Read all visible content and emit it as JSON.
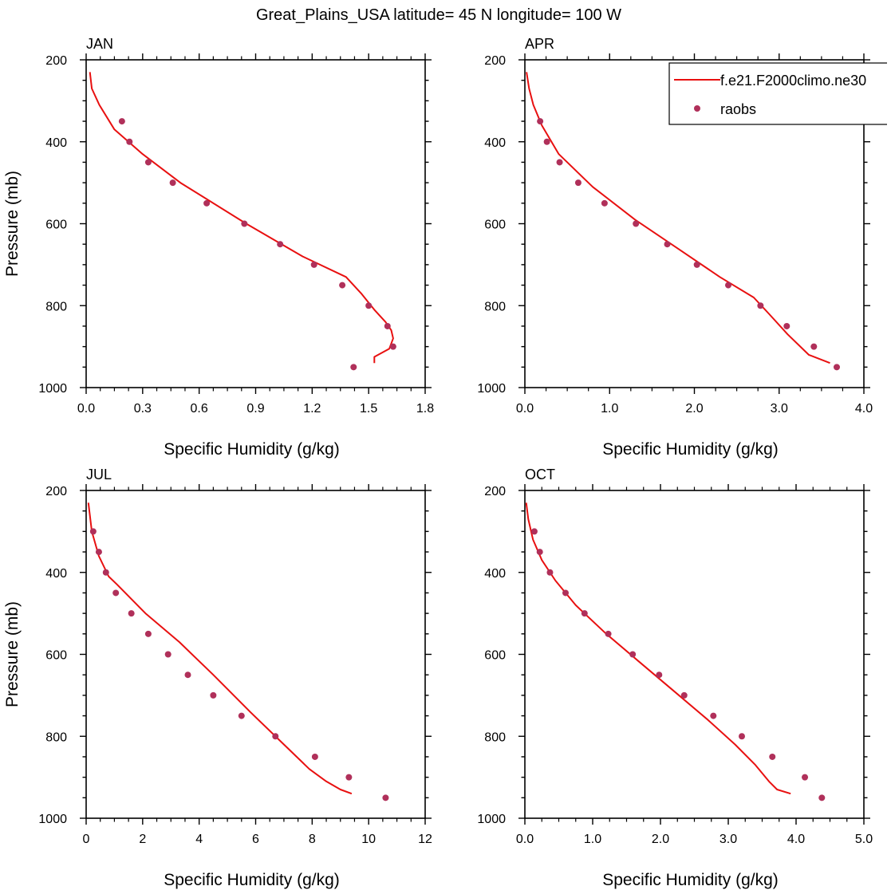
{
  "figure": {
    "title": "Great_Plains_USA  latitude= 45 N longitude= 100 W"
  },
  "colors": {
    "model_line": "#e81010",
    "raobs_marker": "#b0305a"
  },
  "legend": {
    "model_label": "f.e21.F2000climo.ne30",
    "obs_label": "raobs",
    "position": "top-right of APR panel"
  },
  "chart_data": [
    {
      "type": "line",
      "panel": "JAN",
      "title": "JAN",
      "xlabel": "Specific Humidity (g/kg)",
      "ylabel": "Pressure (mb)",
      "xlim": [
        0,
        1.8
      ],
      "ylim": [
        1000,
        200
      ],
      "xticks": [
        "0.0",
        "0.3",
        "0.6",
        "0.9",
        "1.2",
        "1.5",
        "1.8"
      ],
      "xtick_values": [
        0,
        0.3,
        0.6,
        0.9,
        1.2,
        1.5,
        1.8
      ],
      "yticks": [
        "200",
        "400",
        "600",
        "800",
        "1000"
      ],
      "ytick_values": [
        200,
        400,
        600,
        800,
        1000
      ],
      "series": [
        {
          "name": "f.e21.F2000climo.ne30",
          "kind": "line",
          "x": [
            0.02,
            0.03,
            0.07,
            0.15,
            0.3,
            0.5,
            0.85,
            1.15,
            1.38,
            1.46,
            1.53,
            1.59,
            1.62,
            1.63,
            1.61,
            1.53,
            1.53
          ],
          "y": [
            230,
            270,
            310,
            370,
            430,
            500,
            600,
            680,
            730,
            770,
            810,
            840,
            860,
            880,
            905,
            925,
            940
          ]
        },
        {
          "name": "raobs",
          "kind": "scatter",
          "x": [
            0.19,
            0.23,
            0.33,
            0.46,
            0.64,
            0.84,
            1.03,
            1.21,
            1.36,
            1.5,
            1.6,
            1.63,
            1.42
          ],
          "y": [
            350,
            400,
            450,
            500,
            550,
            600,
            650,
            700,
            750,
            800,
            850,
            900,
            950
          ]
        }
      ]
    },
    {
      "type": "line",
      "panel": "APR",
      "title": "APR",
      "xlabel": "Specific Humidity (g/kg)",
      "ylabel": "",
      "xlim": [
        0,
        4.0
      ],
      "ylim": [
        1000,
        200
      ],
      "xticks": [
        "0.0",
        "1.0",
        "2.0",
        "3.0",
        "4.0"
      ],
      "xtick_values": [
        0,
        1,
        2,
        3,
        4
      ],
      "yticks": [
        "200",
        "400",
        "600",
        "800",
        "1000"
      ],
      "ytick_values": [
        200,
        400,
        600,
        800,
        1000
      ],
      "series": [
        {
          "name": "f.e21.F2000climo.ne30",
          "kind": "line",
          "x": [
            0.02,
            0.05,
            0.1,
            0.2,
            0.4,
            0.8,
            1.3,
            1.8,
            2.3,
            2.7,
            2.88,
            3.1,
            3.35,
            3.6
          ],
          "y": [
            230,
            270,
            310,
            360,
            430,
            510,
            590,
            660,
            730,
            780,
            820,
            870,
            920,
            940
          ]
        },
        {
          "name": "raobs",
          "kind": "scatter",
          "x": [
            0.18,
            0.26,
            0.41,
            0.63,
            0.94,
            1.31,
            1.68,
            2.03,
            2.4,
            2.78,
            3.09,
            3.41,
            3.68
          ],
          "y": [
            350,
            400,
            450,
            500,
            550,
            600,
            650,
            700,
            750,
            800,
            850,
            900,
            950
          ]
        }
      ]
    },
    {
      "type": "line",
      "panel": "JUL",
      "title": "JUL",
      "xlabel": "Specific Humidity (g/kg)",
      "ylabel": "Pressure (mb)",
      "xlim": [
        0,
        12
      ],
      "ylim": [
        1000,
        200
      ],
      "xticks": [
        "0",
        "2",
        "4",
        "6",
        "8",
        "10",
        "12"
      ],
      "xtick_values": [
        0,
        2,
        4,
        6,
        8,
        10,
        12
      ],
      "yticks": [
        "200",
        "400",
        "600",
        "800",
        "1000"
      ],
      "ytick_values": [
        200,
        400,
        600,
        800,
        1000
      ],
      "series": [
        {
          "name": "f.e21.F2000climo.ne30",
          "kind": "line",
          "x": [
            0.08,
            0.2,
            0.45,
            0.8,
            1.1,
            2.1,
            3.3,
            4.5,
            5.8,
            7.0,
            7.9,
            8.5,
            9.0,
            9.4
          ],
          "y": [
            230,
            300,
            360,
            410,
            430,
            500,
            570,
            650,
            740,
            820,
            880,
            910,
            930,
            940
          ]
        },
        {
          "name": "raobs",
          "kind": "scatter",
          "x": [
            0.25,
            0.45,
            0.7,
            1.05,
            1.6,
            2.2,
            2.9,
            3.6,
            4.5,
            5.5,
            6.7,
            8.1,
            9.3,
            10.6
          ],
          "y": [
            300,
            350,
            400,
            450,
            500,
            550,
            600,
            650,
            700,
            750,
            800,
            850,
            900,
            950
          ]
        }
      ]
    },
    {
      "type": "line",
      "panel": "OCT",
      "title": "OCT",
      "xlabel": "Specific Humidity (g/kg)",
      "ylabel": "",
      "xlim": [
        0,
        5.0
      ],
      "ylim": [
        1000,
        200
      ],
      "xticks": [
        "0.0",
        "1.0",
        "2.0",
        "3.0",
        "4.0",
        "5.0"
      ],
      "xtick_values": [
        0,
        1,
        2,
        3,
        4,
        5
      ],
      "yticks": [
        "200",
        "400",
        "600",
        "800",
        "1000"
      ],
      "ytick_values": [
        200,
        400,
        600,
        800,
        1000
      ],
      "series": [
        {
          "name": "f.e21.F2000climo.ne30",
          "kind": "line",
          "x": [
            0.02,
            0.05,
            0.12,
            0.25,
            0.45,
            0.75,
            1.2,
            1.7,
            2.2,
            2.7,
            3.1,
            3.4,
            3.6,
            3.72,
            3.92
          ],
          "y": [
            230,
            270,
            320,
            370,
            420,
            480,
            550,
            620,
            690,
            760,
            820,
            870,
            910,
            930,
            940
          ]
        },
        {
          "name": "raobs",
          "kind": "scatter",
          "x": [
            0.14,
            0.22,
            0.37,
            0.6,
            0.88,
            1.23,
            1.59,
            1.98,
            2.35,
            2.78,
            3.2,
            3.65,
            4.13,
            4.38
          ],
          "y": [
            300,
            350,
            400,
            450,
            500,
            550,
            600,
            650,
            700,
            750,
            800,
            850,
            900,
            950
          ]
        }
      ]
    }
  ]
}
